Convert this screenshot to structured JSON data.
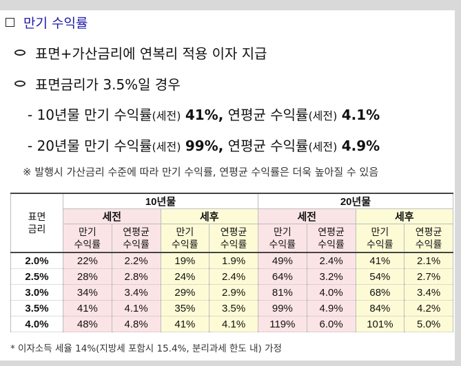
{
  "heading": "만기 수익률",
  "bullets": [
    "표면+가산금리에 연복리 적용 이자 지급",
    "표면금리가 3.5%일 경우"
  ],
  "lines": [
    {
      "lead": "- 10년물 만기 수익률",
      "tag1": "(세전)",
      "val1": "41%,",
      "mid": "연평균 수익률",
      "tag2": "(세전)",
      "val2": "4.1%"
    },
    {
      "lead": "- 20년물 만기 수익률",
      "tag1": "(세전)",
      "val1": "99%,",
      "mid": "연평균 수익률",
      "tag2": "(세전)",
      "val2": "4.9%"
    }
  ],
  "note": "※ 발행시 가산금리 수준에 따라 만기 수익률, 연평균 수익률은 더욱 높아질 수 있음",
  "table": {
    "corner": "표면\n금리",
    "periods": [
      "10년물",
      "20년물"
    ],
    "groups": [
      "세전",
      "세후",
      "세전",
      "세후"
    ],
    "labels": [
      "만기\n수익률",
      "연평균\n수익률",
      "만기\n수익률",
      "연평균\n수익률",
      "만기\n수익률",
      "연평균\n수익률",
      "만기\n수익률",
      "연평균\n수익률"
    ],
    "rows": [
      {
        "rate": "2.0%",
        "cells": [
          "22%",
          "2.2%",
          "19%",
          "1.9%",
          "49%",
          "2.4%",
          "41%",
          "2.1%"
        ]
      },
      {
        "rate": "2.5%",
        "cells": [
          "28%",
          "2.8%",
          "24%",
          "2.4%",
          "64%",
          "3.2%",
          "54%",
          "2.7%"
        ]
      },
      {
        "rate": "3.0%",
        "cells": [
          "34%",
          "3.4%",
          "29%",
          "2.9%",
          "81%",
          "4.0%",
          "68%",
          "3.4%"
        ]
      },
      {
        "rate": "3.5%",
        "cells": [
          "41%",
          "4.1%",
          "35%",
          "3.5%",
          "99%",
          "4.9%",
          "84%",
          "4.2%"
        ]
      },
      {
        "rate": "4.0%",
        "cells": [
          "48%",
          "4.8%",
          "41%",
          "4.1%",
          "119%",
          "6.0%",
          "101%",
          "5.0%"
        ]
      }
    ]
  },
  "footer": "* 이자소득 세율 14%(지방세 포함시 15.4%, 분리과세 한도 내) 가정"
}
